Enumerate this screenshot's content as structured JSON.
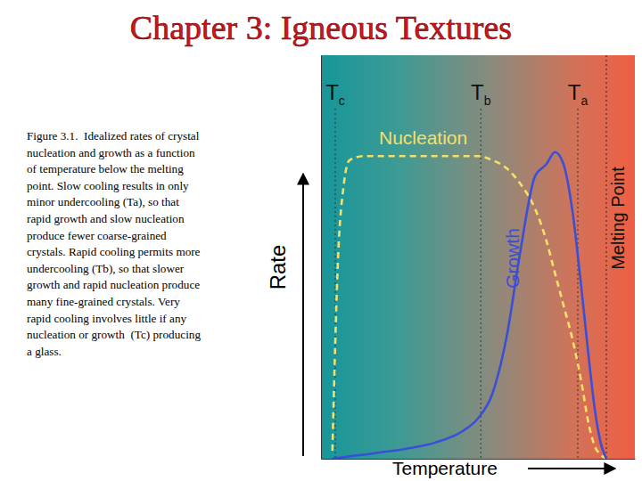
{
  "chart_data": {
    "type": "line",
    "title": "Chapter 3: Igneous Textures",
    "caption": [
      "Figure 3.1.  Idealized rates of crystal",
      "nucleation and growth as a function",
      "of temperature below the melting",
      "point. Slow cooling results in only",
      "minor undercooling (Ta), so that",
      "rapid growth and slow nucleation",
      "produce fewer coarse-grained",
      "crystals. Rapid cooling permits more",
      "undercooling (Tb), so that slower",
      "growth and rapid nucleation produce",
      "many fine-grained crystals. Very",
      "rapid cooling involves little if any",
      "nucleation or growth  (Tc) producing",
      "a glass."
    ],
    "x_label": "Temperature",
    "y_label": "Rate",
    "x": [
      0,
      2,
      4,
      6,
      8,
      10,
      15,
      20,
      30,
      40,
      50,
      55,
      60,
      65,
      70,
      75,
      79,
      82,
      85,
      88,
      91,
      94,
      96,
      98,
      100
    ],
    "xlim": [
      0,
      110
    ],
    "ylim": [
      0,
      100
    ],
    "xticks": [],
    "yticks": [],
    "tick_labels": false,
    "grid": false,
    "series": [
      {
        "name": "Nucleation",
        "color": "#f2e06a",
        "line_style": "dashed",
        "values": [
          null,
          null,
          2,
          50,
          68,
          74,
          75,
          75,
          75,
          75,
          75,
          75,
          74,
          72,
          68,
          62,
          54,
          46,
          38,
          30,
          20,
          8,
          3,
          1,
          0
        ]
      },
      {
        "name": "Growth",
        "color": "#3a4fd8",
        "line_style": "solid",
        "values": [
          null,
          null,
          0,
          0.2,
          0.4,
          0.6,
          1,
          1.5,
          2.5,
          4,
          7,
          10,
          16,
          30,
          52,
          70,
          73,
          76,
          73,
          62,
          44,
          24,
          12,
          4,
          0
        ]
      }
    ],
    "markers": [
      {
        "text": "Tc",
        "x": 5
      },
      {
        "text": "Tb",
        "x": 56
      },
      {
        "text": "Ta",
        "x": 90
      }
    ],
    "melting_point": {
      "text": "Melting Point",
      "x": 100
    }
  }
}
